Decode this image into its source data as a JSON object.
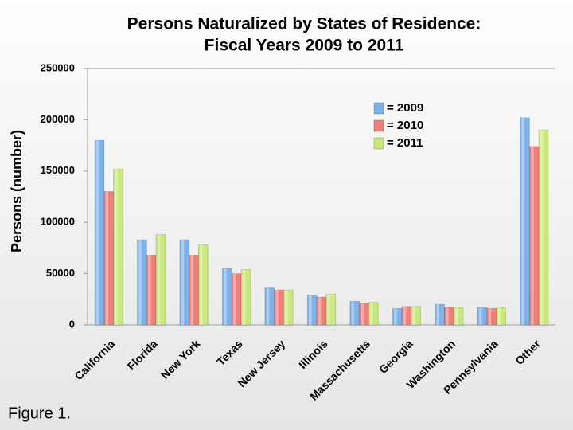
{
  "chart_data": {
    "type": "bar",
    "title": "Persons Naturalized by States of Residence:",
    "subtitle": "Fiscal Years 2009 to 2011",
    "y_label": "Persons (number)",
    "annotation": "Figure 1.",
    "categories": [
      "California",
      "Florida",
      "New York",
      "Texas",
      "New Jersey",
      "Illinois",
      "Massachusetts",
      "Georgia",
      "Washington",
      "Pennsylvania",
      "Other"
    ],
    "series": [
      {
        "name": "= 2009",
        "color": "#7eb2ea",
        "values": [
          180000,
          83000,
          83000,
          55000,
          36000,
          29000,
          23000,
          16000,
          20000,
          17000,
          202000
        ]
      },
      {
        "name": "= 2010",
        "color": "#f07e7a",
        "values": [
          130000,
          68000,
          68000,
          50000,
          34000,
          27000,
          21000,
          18000,
          17000,
          16000,
          174000
        ]
      },
      {
        "name": "= 2011",
        "color": "#c9e87c",
        "values": [
          152000,
          88000,
          78000,
          54000,
          34000,
          30000,
          22000,
          18000,
          17000,
          17000,
          190000
        ]
      }
    ],
    "ylim": [
      0,
      250000
    ],
    "yticks": [
      0,
      50000,
      100000,
      150000,
      200000,
      250000
    ],
    "grid": false,
    "legend": "upper-center"
  }
}
